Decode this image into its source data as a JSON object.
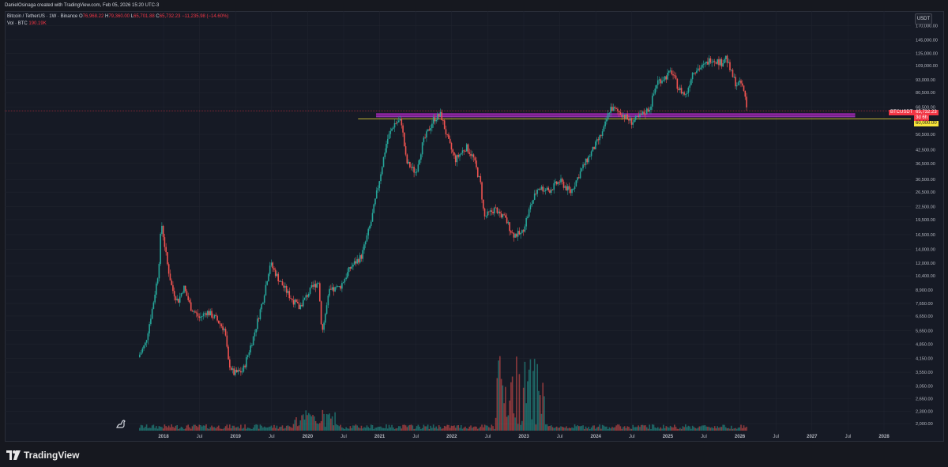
{
  "header": {
    "credit": "DanielOsinaga created with TradingView.com, Feb 05, 2026 15:20 UTC-3",
    "symbol": "Bitcoin / TetherUS · 1W · Binance",
    "ohlc": {
      "o_label": "O",
      "o": "76,968.22",
      "h_label": "H",
      "h": "79,360.00",
      "l_label": "L",
      "l": "65,701.88",
      "c_label": "C",
      "c": "65,732.23",
      "chg": "−11,235.98 (−14.60%)"
    },
    "volume_label": "Vol · BTC",
    "volume_value": "190.19K"
  },
  "currency_button": "USDT",
  "brand": "TradingView",
  "price_tags": {
    "symbol": "BTCUSDT",
    "price": "65,732.23",
    "countdown": "3d 6h",
    "level": "60,000.00"
  },
  "colors": {
    "up": "#26a69a",
    "down": "#ef5350",
    "zone": "#9c27b0",
    "level": "#f7e43a",
    "grid": "#20242f"
  },
  "chart_data": {
    "type": "candlestick",
    "scale": "log",
    "ylim": [
      1850,
      200000
    ],
    "y_ticks": [
      "170,000.00",
      "145,000.00",
      "125,000.00",
      "109,000.00",
      "93,000.00",
      "80,500.00",
      "68,500.00",
      "50,500.00",
      "42,500.00",
      "36,500.00",
      "30,500.00",
      "26,500.00",
      "22,500.00",
      "19,500.00",
      "16,500.00",
      "14,000.00",
      "12,000.00",
      "10,400.00",
      "8,900.00",
      "7,650.00",
      "6,650.00",
      "5,650.00",
      "4,850.00",
      "4,150.00",
      "3,550.00",
      "3,050.00",
      "2,650.00",
      "2,300.00",
      "2,000.00"
    ],
    "x_ticks": [
      "2018",
      "Jul",
      "2019",
      "Jul",
      "2020",
      "Jul",
      "2021",
      "Jul",
      "2022",
      "Jul",
      "2023",
      "Jul",
      "2024",
      "Jul",
      "2025",
      "Jul",
      "2026",
      "Jul",
      "2027",
      "Jul",
      "2028"
    ],
    "path": [
      [
        2017.65,
        4200
      ],
      [
        2017.75,
        4900
      ],
      [
        2017.85,
        7400
      ],
      [
        2017.93,
        11000
      ],
      [
        2017.97,
        19000
      ],
      [
        2018.05,
        12000
      ],
      [
        2018.12,
        9000
      ],
      [
        2018.2,
        7800
      ],
      [
        2018.28,
        9200
      ],
      [
        2018.38,
        7300
      ],
      [
        2018.5,
        6500
      ],
      [
        2018.6,
        7000
      ],
      [
        2018.72,
        6500
      ],
      [
        2018.85,
        5700
      ],
      [
        2018.9,
        4000
      ],
      [
        2018.97,
        3500
      ],
      [
        2019.1,
        3600
      ],
      [
        2019.25,
        5300
      ],
      [
        2019.38,
        8000
      ],
      [
        2019.48,
        12000
      ],
      [
        2019.6,
        10000
      ],
      [
        2019.75,
        8300
      ],
      [
        2019.88,
        7300
      ],
      [
        2020.05,
        9000
      ],
      [
        2020.15,
        9800
      ],
      [
        2020.2,
        5500
      ],
      [
        2020.3,
        8700
      ],
      [
        2020.45,
        9200
      ],
      [
        2020.6,
        11500
      ],
      [
        2020.75,
        13000
      ],
      [
        2020.88,
        19000
      ],
      [
        2021.0,
        31000
      ],
      [
        2021.1,
        47000
      ],
      [
        2021.2,
        57000
      ],
      [
        2021.3,
        59000
      ],
      [
        2021.37,
        37000
      ],
      [
        2021.5,
        33000
      ],
      [
        2021.6,
        46000
      ],
      [
        2021.75,
        60000
      ],
      [
        2021.85,
        63000
      ],
      [
        2021.95,
        47000
      ],
      [
        2022.05,
        38000
      ],
      [
        2022.2,
        44000
      ],
      [
        2022.3,
        39000
      ],
      [
        2022.4,
        29000
      ],
      [
        2022.45,
        20000
      ],
      [
        2022.6,
        22000
      ],
      [
        2022.75,
        19500
      ],
      [
        2022.85,
        16500
      ],
      [
        2022.97,
        16600
      ],
      [
        2023.1,
        23000
      ],
      [
        2023.2,
        28000
      ],
      [
        2023.35,
        27000
      ],
      [
        2023.5,
        30000
      ],
      [
        2023.65,
        26500
      ],
      [
        2023.8,
        34000
      ],
      [
        2023.95,
        42000
      ],
      [
        2024.1,
        52000
      ],
      [
        2024.2,
        68000
      ],
      [
        2024.35,
        64000
      ],
      [
        2024.5,
        58000
      ],
      [
        2024.6,
        61000
      ],
      [
        2024.75,
        68000
      ],
      [
        2024.85,
        91000
      ],
      [
        2024.97,
        96000
      ],
      [
        2025.05,
        102000
      ],
      [
        2025.15,
        84000
      ],
      [
        2025.25,
        78000
      ],
      [
        2025.35,
        103000
      ],
      [
        2025.5,
        108000
      ],
      [
        2025.6,
        118000
      ],
      [
        2025.75,
        112000
      ],
      [
        2025.8,
        121000
      ],
      [
        2025.87,
        102000
      ],
      [
        2025.95,
        88000
      ],
      [
        2026.02,
        89000
      ],
      [
        2026.07,
        78000
      ],
      [
        2026.1,
        65732
      ]
    ],
    "zone": {
      "x_start": 2020.95,
      "x_end": 2027.6,
      "y_top": 64000,
      "y_bottom": 62000
    },
    "level_line": {
      "x_start": 2020.7,
      "value": 60000
    },
    "last_price": 65732.23
  }
}
